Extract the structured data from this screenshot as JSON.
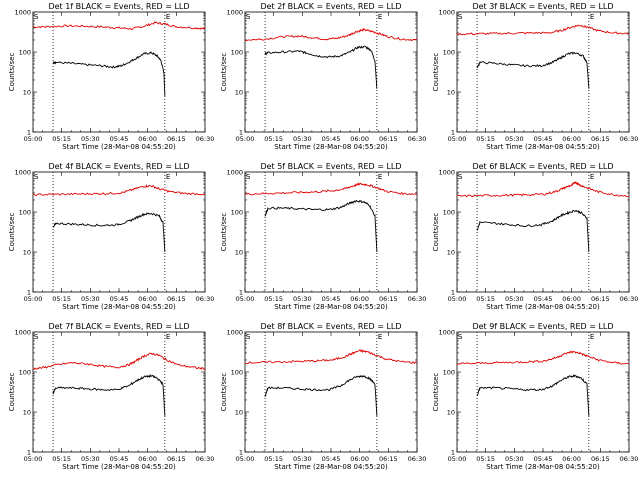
{
  "chart_data": [
    {
      "type": "line",
      "title": "Det 1f BLACK = Events, RED = LLD",
      "xlabel": "Start Time (28-Mar-08 04:55:20)",
      "ylabel": "Counts/sec",
      "ylog": true,
      "ylim": [
        1,
        1000
      ],
      "xlim": [
        0,
        90
      ],
      "x_tick_labels": [
        "05:00",
        "05:15",
        "05:30",
        "05:45",
        "06:00",
        "06:15",
        "06:30"
      ],
      "y_tick_labels": [
        "1",
        "10",
        "100",
        "1000"
      ],
      "event_markers": [
        {
          "label": "S",
          "x": 0
        },
        {
          "label": "E",
          "x": 69
        }
      ],
      "dotted_lines_x": [
        10.5,
        69
      ],
      "series": [
        {
          "name": "LLD",
          "color": "#e00000",
          "x": [
            0,
            8,
            18,
            28,
            38,
            45,
            52,
            58,
            64,
            69,
            75,
            85,
            90
          ],
          "y": [
            420,
            430,
            450,
            440,
            420,
            400,
            380,
            440,
            540,
            500,
            430,
            400,
            380
          ]
        },
        {
          "name": "Events",
          "color": "#000000",
          "x": [
            10.5,
            12,
            20,
            28,
            36,
            42,
            46,
            50,
            54,
            58,
            62,
            65,
            67,
            68.5,
            69
          ],
          "y": [
            55,
            55,
            52,
            48,
            45,
            42,
            45,
            55,
            70,
            90,
            95,
            80,
            60,
            30,
            8
          ]
        }
      ]
    },
    {
      "type": "line",
      "title": "Det 2f BLACK = Events, RED = LLD",
      "xlabel": "Start Time (28-Mar-08 04:55:20)",
      "ylabel": "Counts/sec",
      "ylog": true,
      "ylim": [
        1,
        1000
      ],
      "xlim": [
        0,
        90
      ],
      "x_tick_labels": [
        "05:00",
        "05:15",
        "05:30",
        "05:45",
        "06:00",
        "06:15",
        "06:30"
      ],
      "y_tick_labels": [
        "1",
        "10",
        "100",
        "1000"
      ],
      "event_markers": [
        {
          "label": "S",
          "x": 0
        },
        {
          "label": "E",
          "x": 69
        }
      ],
      "dotted_lines_x": [
        10.5,
        69
      ],
      "series": [
        {
          "name": "LLD",
          "color": "#e00000",
          "x": [
            0,
            10,
            20,
            28,
            35,
            42,
            48,
            54,
            58,
            62,
            66,
            70,
            75,
            82,
            90
          ],
          "y": [
            200,
            210,
            240,
            250,
            230,
            210,
            220,
            260,
            320,
            360,
            330,
            290,
            240,
            210,
            200
          ]
        },
        {
          "name": "Events",
          "color": "#000000",
          "x": [
            10.5,
            12,
            20,
            28,
            32,
            38,
            44,
            50,
            55,
            59,
            63,
            66,
            68,
            69
          ],
          "y": [
            90,
            95,
            100,
            105,
            95,
            80,
            75,
            80,
            100,
            130,
            135,
            110,
            60,
            12
          ]
        }
      ]
    },
    {
      "type": "line",
      "title": "Det 3f BLACK = Events, RED = LLD",
      "xlabel": "Start Time (28-Mar-08 04:55:20)",
      "ylabel": "Counts/sec",
      "ylog": true,
      "ylim": [
        1,
        1000
      ],
      "xlim": [
        0,
        90
      ],
      "x_tick_labels": [
        "05:00",
        "05:15",
        "05:30",
        "05:45",
        "06:00",
        "06:15",
        "06:30"
      ],
      "y_tick_labels": [
        "1",
        "10",
        "100",
        "1000"
      ],
      "event_markers": [
        {
          "label": "S",
          "x": 0
        },
        {
          "label": "E",
          "x": 69
        }
      ],
      "dotted_lines_x": [
        10.5,
        69
      ],
      "series": [
        {
          "name": "LLD",
          "color": "#e00000",
          "x": [
            0,
            10,
            20,
            30,
            40,
            48,
            54,
            60,
            64,
            68,
            74,
            82,
            90
          ],
          "y": [
            280,
            285,
            290,
            295,
            300,
            300,
            340,
            420,
            470,
            420,
            340,
            300,
            290
          ]
        },
        {
          "name": "Events",
          "color": "#000000",
          "x": [
            10.5,
            12,
            20,
            28,
            36,
            44,
            50,
            54,
            58,
            62,
            66,
            68,
            69
          ],
          "y": [
            40,
            55,
            52,
            48,
            45,
            45,
            55,
            70,
            90,
            95,
            80,
            55,
            12
          ]
        }
      ]
    },
    {
      "type": "line",
      "title": "Det 4f BLACK = Events, RED = LLD",
      "xlabel": "Start Time (28-Mar-08 04:55:20)",
      "ylabel": "Counts/sec",
      "ylog": true,
      "ylim": [
        1,
        1000
      ],
      "xlim": [
        0,
        90
      ],
      "x_tick_labels": [
        "05:00",
        "05:15",
        "05:30",
        "05:45",
        "06:00",
        "06:15",
        "06:30"
      ],
      "y_tick_labels": [
        "1",
        "10",
        "100",
        "1000"
      ],
      "event_markers": [
        {
          "label": "S",
          "x": 0
        },
        {
          "label": "E",
          "x": 69
        }
      ],
      "dotted_lines_x": [
        10.5,
        69
      ],
      "series": [
        {
          "name": "LLD",
          "color": "#e00000",
          "x": [
            0,
            10,
            20,
            30,
            38,
            46,
            52,
            58,
            62,
            66,
            72,
            80,
            90
          ],
          "y": [
            270,
            275,
            280,
            285,
            290,
            300,
            360,
            440,
            450,
            380,
            320,
            290,
            280
          ]
        },
        {
          "name": "Events",
          "color": "#000000",
          "x": [
            10.5,
            12,
            20,
            28,
            36,
            44,
            50,
            54,
            58,
            62,
            66,
            68,
            69
          ],
          "y": [
            40,
            52,
            50,
            48,
            46,
            48,
            58,
            72,
            88,
            92,
            80,
            55,
            10
          ]
        }
      ]
    },
    {
      "type": "line",
      "title": "Det 5f BLACK = Events, RED = LLD",
      "xlabel": "Start Time (28-Mar-08 04:55:20)",
      "ylabel": "Counts/sec",
      "ylog": true,
      "ylim": [
        1,
        1000
      ],
      "xlim": [
        0,
        90
      ],
      "x_tick_labels": [
        "05:00",
        "05:15",
        "05:30",
        "05:45",
        "06:00",
        "06:15",
        "06:30"
      ],
      "y_tick_labels": [
        "1",
        "10",
        "100",
        "1000"
      ],
      "event_markers": [
        {
          "label": "S",
          "x": 0
        },
        {
          "label": "E",
          "x": 69
        }
      ],
      "dotted_lines_x": [
        10.5,
        69
      ],
      "series": [
        {
          "name": "LLD",
          "color": "#e00000",
          "x": [
            0,
            10,
            20,
            30,
            38,
            46,
            52,
            56,
            60,
            64,
            68,
            74,
            82,
            90
          ],
          "y": [
            280,
            290,
            300,
            310,
            320,
            340,
            380,
            440,
            500,
            480,
            420,
            330,
            290,
            280
          ]
        },
        {
          "name": "Events",
          "color": "#000000",
          "x": [
            10.5,
            12,
            20,
            28,
            36,
            44,
            50,
            54,
            58,
            62,
            65,
            68,
            69
          ],
          "y": [
            80,
            125,
            125,
            120,
            115,
            115,
            130,
            160,
            190,
            180,
            150,
            80,
            10
          ]
        }
      ]
    },
    {
      "type": "line",
      "title": "Det 6f BLACK = Events, RED = LLD",
      "xlabel": "Start Time (28-Mar-08 04:55:20)",
      "ylabel": "Counts/sec",
      "ylog": true,
      "ylim": [
        1,
        1000
      ],
      "xlim": [
        0,
        90
      ],
      "x_tick_labels": [
        "05:00",
        "05:15",
        "05:30",
        "05:45",
        "06:00",
        "06:15",
        "06:30"
      ],
      "y_tick_labels": [
        "1",
        "10",
        "100",
        "1000"
      ],
      "event_markers": [
        {
          "label": "S",
          "x": 0
        },
        {
          "label": "E",
          "x": 69
        }
      ],
      "dotted_lines_x": [
        10.5,
        69
      ],
      "series": [
        {
          "name": "LLD",
          "color": "#e00000",
          "x": [
            0,
            10,
            20,
            30,
            38,
            46,
            52,
            56,
            60,
            62,
            64,
            68,
            74,
            82,
            90
          ],
          "y": [
            250,
            255,
            260,
            265,
            270,
            280,
            330,
            400,
            470,
            560,
            480,
            400,
            320,
            270,
            250
          ]
        },
        {
          "name": "Events",
          "color": "#000000",
          "x": [
            10.5,
            12,
            20,
            28,
            36,
            44,
            50,
            54,
            58,
            62,
            65,
            68,
            69
          ],
          "y": [
            35,
            55,
            52,
            48,
            45,
            48,
            60,
            80,
            95,
            110,
            95,
            70,
            10
          ]
        }
      ]
    },
    {
      "type": "line",
      "title": "Det 7f BLACK = Events, RED = LLD",
      "xlabel": "Start Time (28-Mar-08 04:55:20)",
      "ylabel": "Counts/sec",
      "ylog": true,
      "ylim": [
        1,
        1000
      ],
      "xlim": [
        0,
        90
      ],
      "x_tick_labels": [
        "05:00",
        "05:15",
        "05:30",
        "05:45",
        "06:00",
        "06:15",
        "06:30"
      ],
      "y_tick_labels": [
        "1",
        "10",
        "100",
        "1000"
      ],
      "event_markers": [
        {
          "label": "S",
          "x": 0
        },
        {
          "label": "E",
          "x": 69
        }
      ],
      "dotted_lines_x": [
        10.5,
        69
      ],
      "series": [
        {
          "name": "LLD",
          "color": "#e00000",
          "x": [
            0,
            6,
            12,
            20,
            28,
            36,
            44,
            50,
            54,
            58,
            62,
            66,
            70,
            76,
            84,
            90
          ],
          "y": [
            120,
            130,
            150,
            170,
            160,
            140,
            130,
            150,
            190,
            250,
            290,
            260,
            200,
            150,
            130,
            120
          ]
        },
        {
          "name": "Events",
          "color": "#000000",
          "x": [
            10.5,
            12,
            20,
            28,
            36,
            44,
            50,
            54,
            58,
            62,
            65,
            68,
            69
          ],
          "y": [
            30,
            40,
            40,
            38,
            36,
            36,
            45,
            60,
            75,
            80,
            70,
            50,
            8
          ]
        }
      ]
    },
    {
      "type": "line",
      "title": "Det 8f BLACK = Events, RED = LLD",
      "xlabel": "Start Time (28-Mar-08 04:55:20)",
      "ylabel": "Counts/sec",
      "ylog": true,
      "ylim": [
        1,
        1000
      ],
      "xlim": [
        0,
        90
      ],
      "x_tick_labels": [
        "05:00",
        "05:15",
        "05:30",
        "05:45",
        "06:00",
        "06:15",
        "06:30"
      ],
      "y_tick_labels": [
        "1",
        "10",
        "100",
        "1000"
      ],
      "event_markers": [
        {
          "label": "S",
          "x": 0
        },
        {
          "label": "E",
          "x": 69
        }
      ],
      "dotted_lines_x": [
        10.5,
        69
      ],
      "series": [
        {
          "name": "LLD",
          "color": "#e00000",
          "x": [
            0,
            10,
            20,
            30,
            38,
            46,
            52,
            56,
            60,
            64,
            68,
            74,
            82,
            90
          ],
          "y": [
            170,
            175,
            180,
            185,
            190,
            200,
            240,
            290,
            340,
            320,
            270,
            210,
            180,
            170
          ]
        },
        {
          "name": "Events",
          "color": "#000000",
          "x": [
            10.5,
            12,
            20,
            28,
            36,
            44,
            50,
            54,
            58,
            62,
            65,
            68,
            69
          ],
          "y": [
            25,
            40,
            40,
            38,
            36,
            36,
            45,
            60,
            75,
            80,
            70,
            50,
            8
          ]
        }
      ]
    },
    {
      "type": "line",
      "title": "Det 9f BLACK = Events, RED = LLD",
      "xlabel": "Start Time (28-Mar-08 04:55:20)",
      "ylabel": "Counts/sec",
      "ylog": true,
      "ylim": [
        1,
        1000
      ],
      "xlim": [
        0,
        90
      ],
      "x_tick_labels": [
        "05:00",
        "05:15",
        "05:30",
        "05:45",
        "06:00",
        "06:15",
        "06:30"
      ],
      "y_tick_labels": [
        "1",
        "10",
        "100",
        "1000"
      ],
      "event_markers": [
        {
          "label": "S",
          "x": 0
        },
        {
          "label": "E",
          "x": 69
        }
      ],
      "dotted_lines_x": [
        10.5,
        69
      ],
      "series": [
        {
          "name": "LLD",
          "color": "#e00000",
          "x": [
            0,
            10,
            20,
            30,
            38,
            46,
            52,
            56,
            60,
            64,
            68,
            74,
            82,
            90
          ],
          "y": [
            160,
            165,
            170,
            175,
            180,
            190,
            230,
            280,
            320,
            300,
            250,
            200,
            170,
            160
          ]
        },
        {
          "name": "Events",
          "color": "#000000",
          "x": [
            10.5,
            12,
            20,
            28,
            36,
            44,
            50,
            54,
            58,
            62,
            65,
            68,
            69
          ],
          "y": [
            25,
            40,
            40,
            38,
            36,
            36,
            45,
            60,
            75,
            80,
            70,
            50,
            8
          ]
        }
      ]
    }
  ]
}
